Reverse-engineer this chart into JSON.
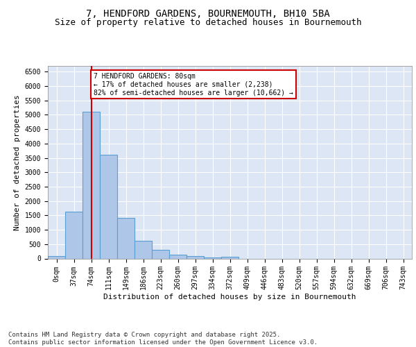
{
  "title_line1": "7, HENDFORD GARDENS, BOURNEMOUTH, BH10 5BA",
  "title_line2": "Size of property relative to detached houses in Bournemouth",
  "xlabel": "Distribution of detached houses by size in Bournemouth",
  "ylabel": "Number of detached properties",
  "bar_color": "#aec6e8",
  "bar_edge_color": "#5a9fd4",
  "vline_color": "#cc0000",
  "vline_x": 2.0,
  "annotation_text": "7 HENDFORD GARDENS: 80sqm\n← 17% of detached houses are smaller (2,238)\n82% of semi-detached houses are larger (10,662) →",
  "annotation_box_color": "#ffffff",
  "annotation_box_edge": "#cc0000",
  "categories": [
    "0sqm",
    "37sqm",
    "74sqm",
    "111sqm",
    "149sqm",
    "186sqm",
    "223sqm",
    "260sqm",
    "297sqm",
    "334sqm",
    "372sqm",
    "409sqm",
    "446sqm",
    "483sqm",
    "520sqm",
    "557sqm",
    "594sqm",
    "632sqm",
    "669sqm",
    "706sqm",
    "743sqm"
  ],
  "values": [
    75,
    1630,
    5100,
    3620,
    1420,
    620,
    310,
    135,
    75,
    45,
    50,
    0,
    0,
    0,
    0,
    0,
    0,
    0,
    0,
    0,
    0
  ],
  "ylim": [
    0,
    6700
  ],
  "yticks": [
    0,
    500,
    1000,
    1500,
    2000,
    2500,
    3000,
    3500,
    4000,
    4500,
    5000,
    5500,
    6000,
    6500
  ],
  "background_color": "#dce6f5",
  "fig_background_color": "#ffffff",
  "footer_text": "Contains HM Land Registry data © Crown copyright and database right 2025.\nContains public sector information licensed under the Open Government Licence v3.0.",
  "grid_color": "#ffffff",
  "title_fontsize": 10,
  "subtitle_fontsize": 9,
  "axis_label_fontsize": 8,
  "tick_fontsize": 7,
  "footer_fontsize": 6.5,
  "annotation_fontsize": 7
}
